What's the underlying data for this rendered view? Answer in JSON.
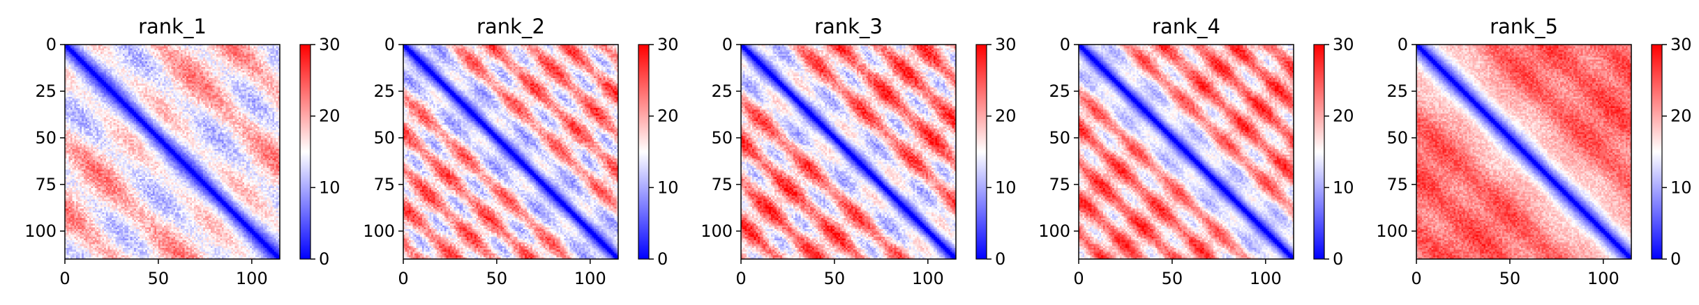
{
  "chart_data": [
    {
      "type": "heatmap",
      "title": "rank_1",
      "matrix_size": 115,
      "xlim": [
        0,
        115
      ],
      "ylim": [
        115,
        0
      ],
      "xticks": [
        0,
        50,
        100
      ],
      "yticks": [
        0,
        25,
        50,
        75,
        100
      ],
      "colorbar": {
        "range": [
          0,
          30
        ],
        "ticks": [
          0,
          10,
          20,
          30
        ]
      },
      "colormap": {
        "low": "#0000ff",
        "mid": "#ffffff",
        "high": "#ff0000"
      },
      "pattern": {
        "diag_decay": 9,
        "band_period": 38,
        "band_strength": 0.55,
        "base": 17,
        "noise": 3
      },
      "xlabel": "",
      "ylabel": ""
    },
    {
      "type": "heatmap",
      "title": "rank_2",
      "matrix_size": 115,
      "xlim": [
        0,
        115
      ],
      "ylim": [
        115,
        0
      ],
      "xticks": [
        0,
        50,
        100
      ],
      "yticks": [
        0,
        25,
        50,
        75,
        100
      ],
      "colorbar": {
        "range": [
          0,
          30
        ],
        "ticks": [
          0,
          10,
          20,
          30
        ]
      },
      "colormap": {
        "low": "#0000ff",
        "mid": "#ffffff",
        "high": "#ff0000"
      },
      "pattern": {
        "diag_decay": 10,
        "band_period": 20,
        "band_strength": 0.7,
        "base": 19,
        "noise": 3
      },
      "xlabel": "",
      "ylabel": ""
    },
    {
      "type": "heatmap",
      "title": "rank_3",
      "matrix_size": 115,
      "xlim": [
        0,
        115
      ],
      "ylim": [
        115,
        0
      ],
      "xticks": [
        0,
        50,
        100
      ],
      "yticks": [
        0,
        25,
        50,
        75,
        100
      ],
      "colorbar": {
        "range": [
          0,
          30
        ],
        "ticks": [
          0,
          10,
          20,
          30
        ]
      },
      "colormap": {
        "low": "#0000ff",
        "mid": "#ffffff",
        "high": "#ff0000"
      },
      "pattern": {
        "diag_decay": 10,
        "band_period": 22,
        "band_strength": 0.75,
        "base": 20,
        "noise": 3
      },
      "xlabel": "",
      "ylabel": ""
    },
    {
      "type": "heatmap",
      "title": "rank_4",
      "matrix_size": 115,
      "xlim": [
        0,
        115
      ],
      "ylim": [
        115,
        0
      ],
      "xticks": [
        0,
        50,
        100
      ],
      "yticks": [
        0,
        25,
        50,
        75,
        100
      ],
      "colorbar": {
        "range": [
          0,
          30
        ],
        "ticks": [
          0,
          10,
          20,
          30
        ]
      },
      "colormap": {
        "low": "#0000ff",
        "mid": "#ffffff",
        "high": "#ff0000"
      },
      "pattern": {
        "diag_decay": 11,
        "band_period": 19,
        "band_strength": 0.65,
        "base": 21,
        "noise": 2.5
      },
      "xlabel": "",
      "ylabel": ""
    },
    {
      "type": "heatmap",
      "title": "rank_5",
      "matrix_size": 115,
      "xlim": [
        0,
        115
      ],
      "ylim": [
        115,
        0
      ],
      "xticks": [
        0,
        50,
        100
      ],
      "yticks": [
        0,
        25,
        50,
        75,
        100
      ],
      "colorbar": {
        "range": [
          0,
          30
        ],
        "ticks": [
          0,
          10,
          20,
          30
        ]
      },
      "colormap": {
        "low": "#0000ff",
        "mid": "#ffffff",
        "high": "#ff0000"
      },
      "pattern": {
        "diag_decay": 12,
        "band_period": 30,
        "band_strength": 0.25,
        "base": 24,
        "noise": 2.5
      },
      "xlabel": "",
      "ylabel": ""
    }
  ]
}
